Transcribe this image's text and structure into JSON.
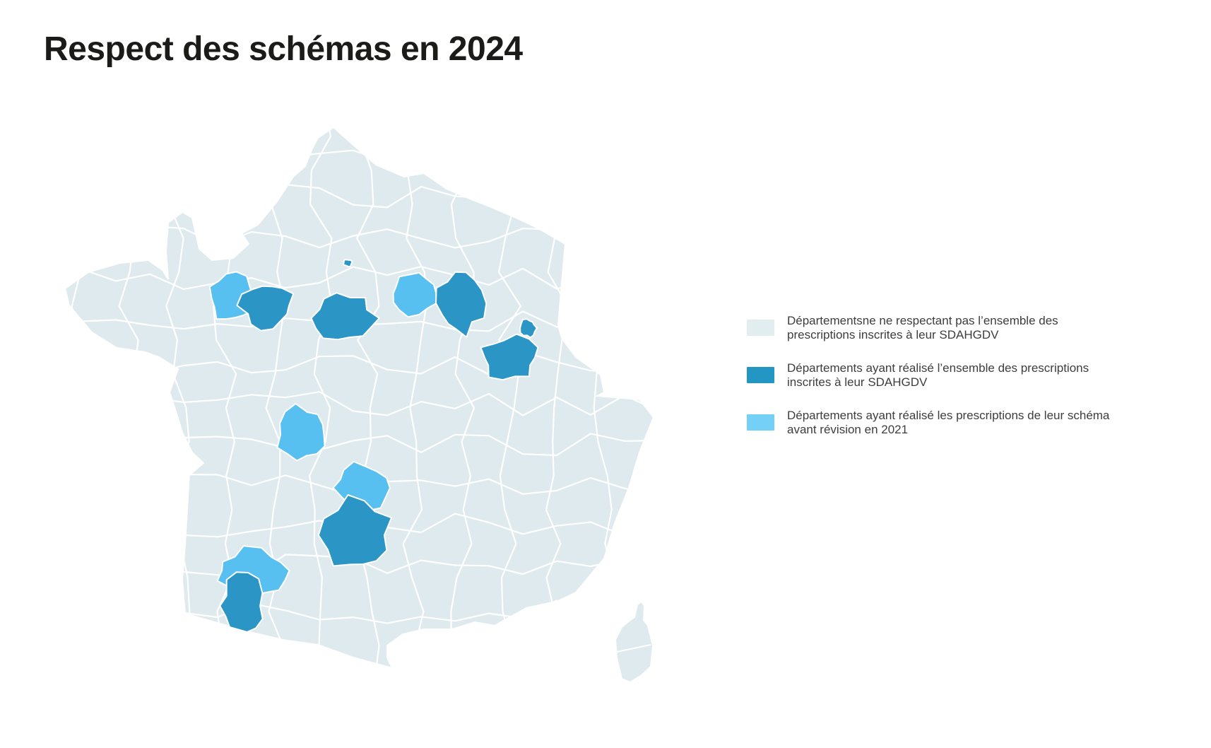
{
  "title": "Respect des schémas en 2024",
  "legend": {
    "items": [
      {
        "id": "not-respected",
        "color": "#e2edf0",
        "lines": [
          "Départementsne ne respectant pas l’ensemble des",
          "prescriptions inscrites à leur SDAHGDV"
        ]
      },
      {
        "id": "realise",
        "color": "#2496c4",
        "lines": [
          "Départements ayant réalisé l’ensemble des prescriptions",
          "inscrites à leur SDAHGDV"
        ]
      },
      {
        "id": "avant-revision-2021",
        "color": "#74d0f6",
        "lines": [
          "Départements ayant réalisé les prescriptions de leur schéma",
          "avant révision en 2021"
        ]
      }
    ]
  },
  "map": {
    "description": "Carte des départements de France métropolitaine et Corse",
    "base_color": "#dfeaee",
    "border_color": "#ffffff",
    "status_colors": {
      "not_respected": "#dfeaee",
      "realise": "#2b95c6",
      "avant_revision_2021": "#58c0f0"
    },
    "highlighted_regions": [
      {
        "id": "dept-normandy-west",
        "status": "avant_revision_2021"
      },
      {
        "id": "dept-normandy-east",
        "status": "realise"
      },
      {
        "id": "dept-paris-small",
        "status": "realise"
      },
      {
        "id": "dept-center-north",
        "status": "realise"
      },
      {
        "id": "dept-northeast-west",
        "status": "avant_revision_2021"
      },
      {
        "id": "dept-northeast-east",
        "status": "realise"
      },
      {
        "id": "dept-east",
        "status": "realise"
      },
      {
        "id": "dept-east-small",
        "status": "realise"
      },
      {
        "id": "dept-center",
        "status": "avant_revision_2021"
      },
      {
        "id": "dept-south-center-north",
        "status": "avant_revision_2021"
      },
      {
        "id": "dept-south-center",
        "status": "realise"
      },
      {
        "id": "dept-southwest-north",
        "status": "avant_revision_2021"
      },
      {
        "id": "dept-southwest-south",
        "status": "realise"
      }
    ]
  }
}
